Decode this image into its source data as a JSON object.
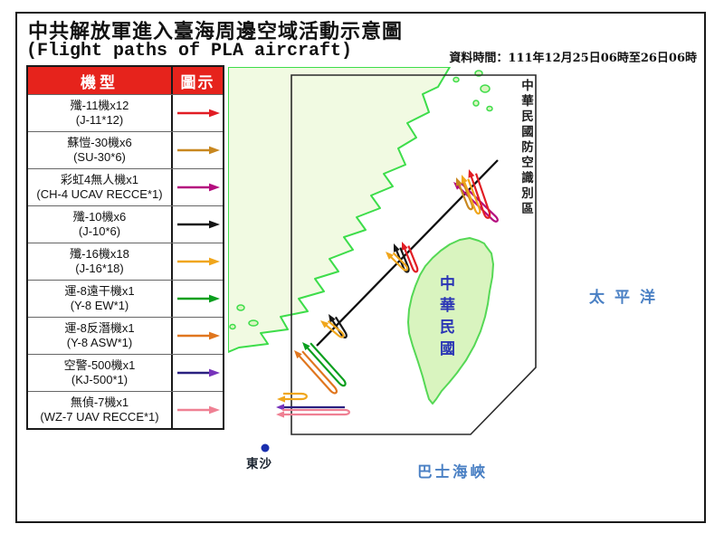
{
  "header": {
    "title_zh": "中共解放軍進入臺海周邊空域活動示意圖",
    "title_en": "(Flight paths of PLA aircraft)",
    "data_time": "資料時間：111年12月25日06時至26日06時"
  },
  "legend": {
    "col_type": "機型",
    "col_symbol": "圖示",
    "header_bg": "#e6231c",
    "rows": [
      {
        "zh": "殲-11機x12",
        "en": "(J-11*12)",
        "color": "#e11d24"
      },
      {
        "zh": "蘇愷-30機x6",
        "en": "(SU-30*6)",
        "color": "#c8871f"
      },
      {
        "zh": "彩虹4無人機x1",
        "en": "(CH-4 UCAV RECCE*1)",
        "color": "#b40d7e"
      },
      {
        "zh": "殲-10機x6",
        "en": "(J-10*6)",
        "color": "#161616"
      },
      {
        "zh": "殲-16機x18",
        "en": "(J-16*18)",
        "color": "#f0a61c"
      },
      {
        "zh": "運-8遠干機x1",
        "en": "(Y-8 EW*1)",
        "color": "#0a9f1e"
      },
      {
        "zh": "運-8反潛機x1",
        "en": "(Y-8 ASW*1)",
        "color": "#e0761e"
      },
      {
        "zh": "空警-500機x1",
        "en": "(KJ-500*1)",
        "color": "#2a2080",
        "head_color": "#7733bb"
      },
      {
        "zh": "無偵-7機x1",
        "en": "(WZ-7 UAV RECCE*1)",
        "color": "#ef8093"
      }
    ]
  },
  "map": {
    "adiz_label": "中華民國防空識別區",
    "taiwan_label": "中華民國",
    "pacific_label": "太平洋",
    "bashi_label": "巴士海峽",
    "dongsha_label": "東沙",
    "sea_label_color": "#4a80c4",
    "taiwan_label_color": "#2a35b5",
    "land_fill": "#f1fae2",
    "land_stroke": "#3ddd4a",
    "taiwan_fill": "#d9f4bf",
    "taiwan_stroke": "#55d855",
    "dongsha_dot_color": "#1a2fae",
    "flight_arrows": [
      {
        "type": "hairpin",
        "tip": [
          249,
          127
        ],
        "bearing": 314,
        "len": 60,
        "gap": 5,
        "legend": 2
      },
      {
        "type": "hairpin",
        "tip": [
          252,
          122
        ],
        "bearing": 338,
        "len": 34,
        "gap": 5,
        "legend": 1
      },
      {
        "type": "hairpin",
        "tip": [
          258,
          119
        ],
        "bearing": 339,
        "len": 42,
        "gap": 5,
        "legend": 4
      },
      {
        "type": "hairpin",
        "tip": [
          266,
          113
        ],
        "bearing": 341,
        "len": 52,
        "gap": 6,
        "legend": 0
      },
      {
        "type": "hairpin",
        "tip": [
          192,
          193
        ],
        "bearing": 338,
        "len": 32,
        "gap": 5,
        "legend": 0
      },
      {
        "type": "hairpin",
        "tip": [
          183,
          195
        ],
        "bearing": 338,
        "len": 30,
        "gap": 5,
        "legend": 3
      },
      {
        "type": "hairpin",
        "tip": [
          174,
          204
        ],
        "bearing": 315,
        "len": 26,
        "gap": 5,
        "legend": 4
      },
      {
        "type": "hairpin",
        "tip": [
          111,
          273
        ],
        "bearing": 328,
        "len": 27,
        "gap": 5,
        "legend": 3
      },
      {
        "type": "hairpin",
        "tip": [
          102,
          280
        ],
        "bearing": 310,
        "len": 26,
        "gap": 5,
        "legend": 4
      },
      {
        "type": "hairpin",
        "tip": [
          82,
          304
        ],
        "bearing": 318,
        "len": 61,
        "gap": 6,
        "legend": 5
      },
      {
        "type": "hairpin",
        "tip": [
          73,
          313
        ],
        "bearing": 318,
        "len": 60,
        "gap": 6,
        "legend": 6
      },
      {
        "type": "hairpin",
        "tip": [
          54,
          367
        ],
        "bearing": 270,
        "len": 27,
        "gap": 6,
        "legend": 4
      },
      {
        "type": "line",
        "tip": [
          53,
          376
        ],
        "bearing": 270,
        "len": 76,
        "legend": 7
      },
      {
        "type": "hairpin",
        "tip": [
          53,
          384
        ],
        "bearing": 270,
        "len": 76,
        "gap": 5,
        "legend": 8
      }
    ]
  }
}
